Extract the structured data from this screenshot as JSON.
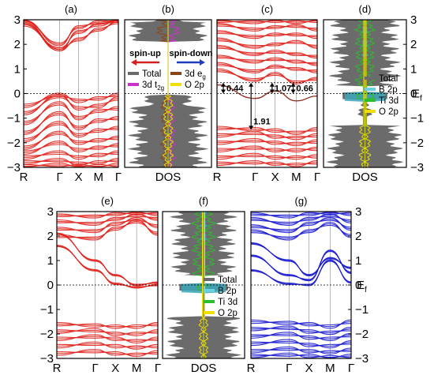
{
  "chart_data": [
    {
      "type": "line",
      "panel": "(a)",
      "kind": "band",
      "xticks": [
        "R",
        "Γ",
        "X",
        "M",
        "Γ"
      ],
      "yticks": [
        "3",
        "2",
        "1",
        "0",
        "−1",
        "−2",
        "−3"
      ],
      "ylim": [
        -3,
        3
      ],
      "band_color": "#e0201b",
      "bands_upper": [
        [
          2.8,
          1.8,
          2.2,
          2.6,
          2.9
        ],
        [
          2.9,
          1.8,
          2.5,
          2.8,
          2.95
        ],
        [
          3.0,
          2.0,
          2.7,
          2.9,
          3.0
        ]
      ],
      "bands_lower": [
        [
          -0.5,
          -0.05,
          -0.3,
          -0.2,
          -0.05
        ],
        [
          -0.8,
          -0.1,
          -0.6,
          -0.5,
          -0.2
        ],
        [
          -1.2,
          -0.4,
          -1.0,
          -0.7,
          -0.6
        ],
        [
          -1.6,
          -0.8,
          -1.4,
          -1.1,
          -1.0
        ],
        [
          -1.9,
          -1.2,
          -1.7,
          -1.5,
          -1.4
        ],
        [
          -2.2,
          -1.6,
          -2.0,
          -1.9,
          -1.8
        ],
        [
          -2.4,
          -2.0,
          -2.3,
          -2.2,
          -2.1
        ],
        [
          -2.6,
          -2.4,
          -2.6,
          -2.5,
          -2.4
        ],
        [
          -2.8,
          -2.7,
          -2.85,
          -2.8,
          -2.7
        ],
        [
          -2.95,
          -2.9,
          -2.95,
          -2.95,
          -2.9
        ]
      ]
    },
    {
      "type": "area",
      "panel": "(b)",
      "kind": "dos",
      "xlabel": "DOS",
      "arrows": [
        {
          "label": "spin-up",
          "color": "#d62020"
        },
        {
          "label": "spin-down",
          "color": "#1f3fbf"
        }
      ],
      "legend": [
        {
          "label": "Total",
          "color": "#6b6b6b"
        },
        {
          "label": "3d e",
          "sub": "g",
          "color": "#8b4513"
        },
        {
          "label": "3d t",
          "sub": "2g",
          "color": "#cc33cc"
        },
        {
          "label": "O 2p",
          "color": "#f0e000"
        }
      ]
    },
    {
      "type": "line",
      "panel": "(c)",
      "kind": "band",
      "xticks": [
        "R",
        "Γ",
        "X",
        "M",
        "Γ"
      ],
      "band_color": "#e0201b",
      "annotations": [
        "0.44",
        "1.07",
        "0.66",
        "1.91"
      ],
      "bands_upper": [
        [
          0.95,
          0.55,
          0.8,
          0.45,
          0.6
        ],
        [
          1.2,
          0.9,
          1.1,
          1.0,
          0.9
        ],
        [
          1.5,
          1.3,
          1.4,
          1.3,
          1.2
        ],
        [
          1.9,
          1.6,
          1.7,
          1.6,
          1.5
        ],
        [
          2.2,
          1.9,
          2.0,
          2.1,
          1.9
        ],
        [
          2.5,
          2.3,
          2.4,
          2.4,
          2.3
        ],
        [
          2.8,
          2.6,
          2.7,
          2.75,
          2.6
        ],
        [
          2.95,
          2.9,
          2.95,
          2.9,
          2.95
        ]
      ],
      "bands_lower": [
        [
          -1.4,
          -1.45,
          -1.5,
          -1.6,
          -1.45
        ],
        [
          -1.7,
          -1.6,
          -1.75,
          -1.8,
          -1.7
        ],
        [
          -2.0,
          -1.9,
          -2.0,
          -2.05,
          -1.95
        ],
        [
          -2.3,
          -2.2,
          -2.3,
          -2.3,
          -2.25
        ],
        [
          -2.6,
          -2.5,
          -2.6,
          -2.6,
          -2.55
        ],
        [
          -2.85,
          -2.8,
          -2.85,
          -2.9,
          -2.8
        ]
      ],
      "mid_band": [
        0.35,
        -0.2,
        0.1,
        -0.3,
        -0.1
      ]
    },
    {
      "type": "area",
      "panel": "(d)",
      "kind": "dos",
      "xlabel": "DOS",
      "yticks": [
        "3",
        "2",
        "1",
        "0",
        "−1",
        "−2",
        "−3"
      ],
      "ef_label": "E",
      "ef_sub": "f",
      "legend": [
        {
          "label": "Total",
          "color": "#6b6b6b"
        },
        {
          "label": "B 2p",
          "color": "#6ad0e0"
        },
        {
          "label": "Ti 3d",
          "color": "#2bbf2b"
        },
        {
          "label": "O 2p",
          "color": "#f0e000"
        }
      ]
    },
    {
      "type": "line",
      "panel": "(e)",
      "kind": "band",
      "xticks": [
        "R",
        "Γ",
        "X",
        "M",
        "Γ"
      ],
      "yticks": [
        "3",
        "2",
        "1",
        "0",
        "−1",
        "−2",
        "−3"
      ],
      "band_color": "#e0201b",
      "bands_upper": [
        [
          2.0,
          1.9,
          2.3,
          2.6,
          2.1
        ],
        [
          2.3,
          2.2,
          2.5,
          2.7,
          2.4
        ],
        [
          2.6,
          2.5,
          2.7,
          2.85,
          2.7
        ],
        [
          2.85,
          2.8,
          2.9,
          2.95,
          2.9
        ]
      ],
      "dispersive": [
        [
          2.1,
          1.0,
          0.4,
          0.0,
          0.1
        ],
        [
          1.6,
          0.6,
          0.05,
          -0.1,
          0.0
        ]
      ],
      "bands_lower": [
        [
          -1.6,
          -1.65,
          -1.7,
          -1.7,
          -1.6
        ],
        [
          -1.9,
          -1.85,
          -2.0,
          -2.0,
          -1.9
        ],
        [
          -2.2,
          -2.1,
          -2.2,
          -2.3,
          -2.2
        ],
        [
          -2.5,
          -2.4,
          -2.5,
          -2.55,
          -2.5
        ],
        [
          -2.8,
          -2.7,
          -2.8,
          -2.85,
          -2.75
        ]
      ]
    },
    {
      "type": "area",
      "panel": "(f)",
      "kind": "dos",
      "xlabel": "DOS",
      "legend": [
        {
          "label": "Total",
          "color": "#6b6b6b"
        },
        {
          "label": "B 2p",
          "color": "#6ad0e0"
        },
        {
          "label": "Ti 3d",
          "color": "#2bbf2b"
        },
        {
          "label": "O 2p",
          "color": "#f0e000"
        }
      ]
    },
    {
      "type": "line",
      "panel": "(g)",
      "kind": "band",
      "xticks": [
        "R",
        "Γ",
        "X",
        "M",
        "Γ"
      ],
      "yticks": [
        "3",
        "2",
        "1",
        "0",
        "−1",
        "−2",
        "−3"
      ],
      "ef_label": "E",
      "ef_sub": "f",
      "band_color": "#1a1ad0",
      "bands_upper": [
        [
          2.2,
          1.9,
          2.2,
          2.5,
          2.0
        ],
        [
          2.4,
          2.2,
          2.5,
          2.7,
          2.3
        ],
        [
          2.7,
          2.5,
          2.7,
          2.85,
          2.6
        ],
        [
          2.9,
          2.8,
          2.9,
          2.95,
          2.9
        ]
      ],
      "dispersive": [
        [
          1.7,
          1.0,
          0.4,
          1.1,
          0.7
        ],
        [
          1.2,
          0.4,
          0.2,
          1.4,
          0.5
        ],
        [
          0.6,
          0.05,
          0.0,
          1.0,
          0.1
        ]
      ],
      "bands_lower": [
        [
          -1.5,
          -1.55,
          -1.6,
          -1.7,
          -1.5
        ],
        [
          -1.8,
          -1.75,
          -1.9,
          -1.95,
          -1.8
        ],
        [
          -2.1,
          -2.0,
          -2.15,
          -2.2,
          -2.05
        ],
        [
          -2.4,
          -2.3,
          -2.45,
          -2.5,
          -2.35
        ],
        [
          -2.7,
          -2.6,
          -2.7,
          -2.75,
          -2.65
        ],
        [
          -2.9,
          -2.85,
          -2.9,
          -2.95,
          -2.9
        ]
      ]
    }
  ]
}
